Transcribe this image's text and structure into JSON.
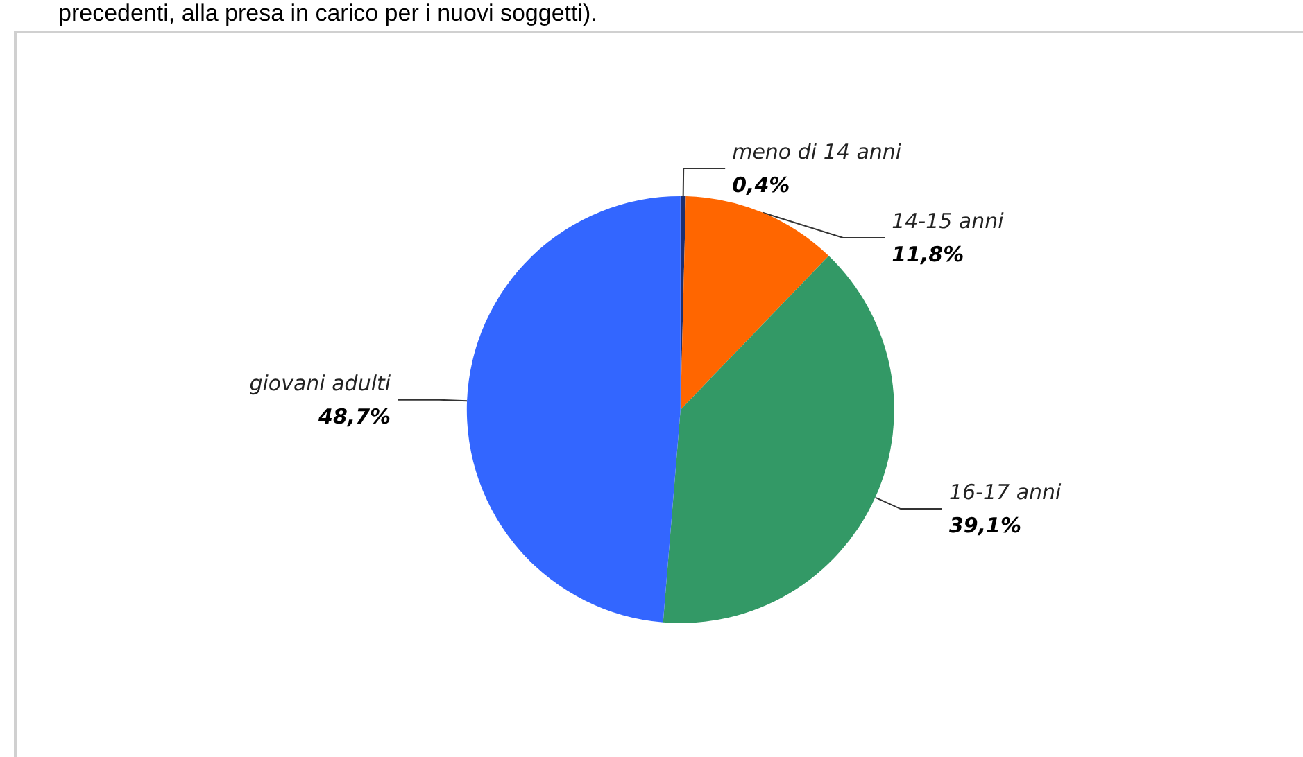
{
  "chart_data": {
    "type": "pie",
    "annotations": [
      "precedenti, alla presa in carico per i nuovi soggetti)."
    ],
    "categories": [
      "meno di 14 anni",
      "14-15 anni",
      "16-17 anni",
      "giovani adulti"
    ],
    "values": [
      0.4,
      11.8,
      39.1,
      48.7
    ],
    "colors": [
      "#1f2f6e",
      "#ff6600",
      "#339966",
      "#3366ff"
    ],
    "value_labels": [
      "0,4%",
      "11,8%",
      "39,1%",
      "48,7%"
    ],
    "legend": false
  }
}
